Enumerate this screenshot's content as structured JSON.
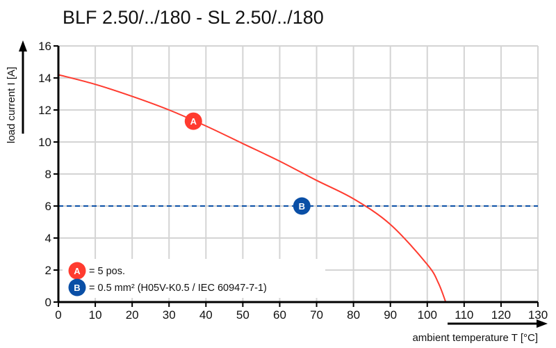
{
  "chart_data": {
    "type": "line",
    "title": "BLF 2.50/../180 - SL 2.50/../180",
    "xlabel": "ambient temperature T [°C]",
    "ylabel": "load current I [A]",
    "xlim": [
      0,
      130
    ],
    "ylim": [
      0,
      16
    ],
    "xticks": [
      0,
      10,
      20,
      30,
      40,
      50,
      60,
      70,
      80,
      90,
      100,
      110,
      120,
      130
    ],
    "yticks": [
      0,
      2,
      4,
      6,
      8,
      10,
      12,
      14,
      16
    ],
    "grid": true,
    "series": [
      {
        "marker": "A",
        "color": "#ff3b2f",
        "style": "solid",
        "x": [
          0,
          10,
          20,
          30,
          40,
          50,
          60,
          70,
          80,
          90,
          100,
          103,
          105
        ],
        "y": [
          14.2,
          13.6,
          12.85,
          12.0,
          11.0,
          9.9,
          8.8,
          7.6,
          6.45,
          4.85,
          2.35,
          1.2,
          0
        ],
        "marker_at": [
          36.6,
          11.3
        ]
      },
      {
        "marker": "B",
        "color": "#0a4fa6",
        "style": "dashed",
        "x": [
          0,
          130
        ],
        "y": [
          6,
          6
        ],
        "marker_at": [
          66,
          6
        ]
      }
    ],
    "legend": {
      "placement": "bottom-left",
      "entries": [
        {
          "marker": "A",
          "text": "= 5 pos."
        },
        {
          "marker": "B",
          "text": "= 0.5 mm² (H05V-K0.5 / IEC 60947-7-1)"
        }
      ]
    }
  }
}
